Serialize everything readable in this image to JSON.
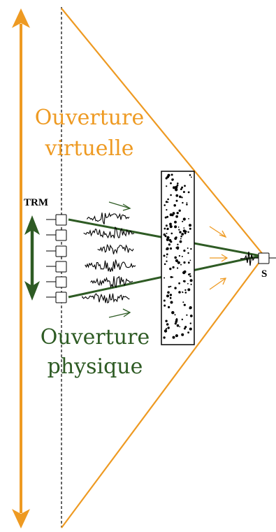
{
  "labels": {
    "virtual_aperture_line1": "Ouverture",
    "virtual_aperture_line2": "virtuelle",
    "physical_aperture_line1": "Ouverture",
    "physical_aperture_line2": "physique",
    "array_label": "TRM",
    "source_label": "S"
  },
  "colors": {
    "virtual": "#EE9A22",
    "physical": "#2E5B24",
    "ink": "#000000"
  },
  "array": {
    "element_count": 6
  }
}
